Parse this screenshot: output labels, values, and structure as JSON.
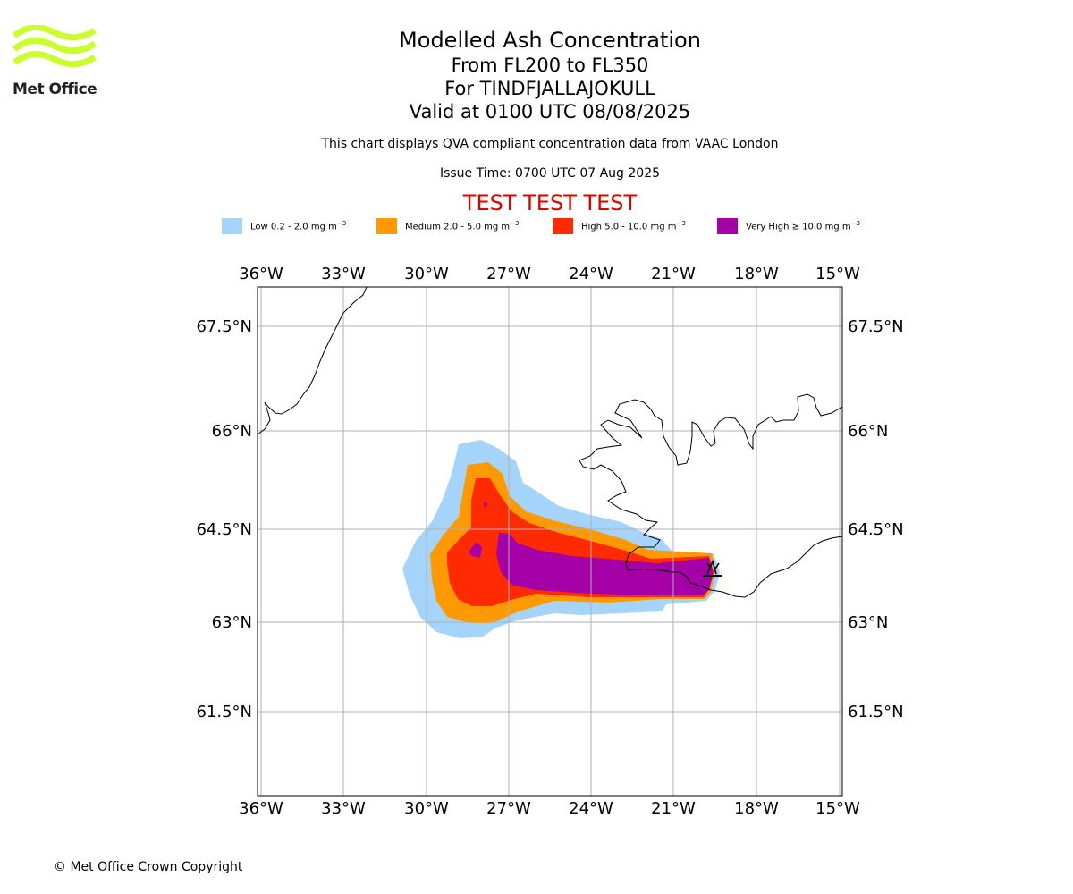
{
  "logo": {
    "text": "Met Office",
    "color": "#c8ff2c"
  },
  "titles": {
    "title": "Modelled Ash Concentration",
    "line2": "From FL200 to FL350",
    "line3": "For TINDFJALLAJOKULL",
    "line4": "Valid at 0100 UTC 08/08/2025",
    "note": "This chart displays QVA compliant concentration data from VAAC London",
    "issue": "Issue Time: 0700 UTC 07 Aug 2025",
    "test": "TEST TEST TEST"
  },
  "legend": [
    {
      "label": "Low 0.2 - 2.0 mg m",
      "exp": "−3",
      "color": "#a5d4fb"
    },
    {
      "label": "Medium 2.0 - 5.0 mg m",
      "exp": "−3",
      "color": "#ff9900"
    },
    {
      "label": "High 5.0 - 10.0 mg m",
      "exp": "−3",
      "color": "#ff2a00"
    },
    {
      "label": "Very High  ≥  10.0 mg m",
      "exp": "−3",
      "color": "#a500a8"
    }
  ],
  "axes": {
    "lon_ticks": [
      "36°W",
      "33°W",
      "30°W",
      "27°W",
      "24°W",
      "21°W",
      "18°W",
      "15°W"
    ],
    "lat_ticks": [
      "67.5°N",
      "66°N",
      "64.5°N",
      "63°N",
      "61.5°N"
    ],
    "lon_range": [
      -36,
      -15
    ],
    "lat_range": [
      60.2,
      68.1
    ],
    "grid": true
  },
  "volcano": {
    "name": "TINDFJALLAJOKULL",
    "lon": -19.6,
    "lat": 63.8,
    "icon": "volcano-icon"
  },
  "copyright": "© Met Office Crown Copyright"
}
